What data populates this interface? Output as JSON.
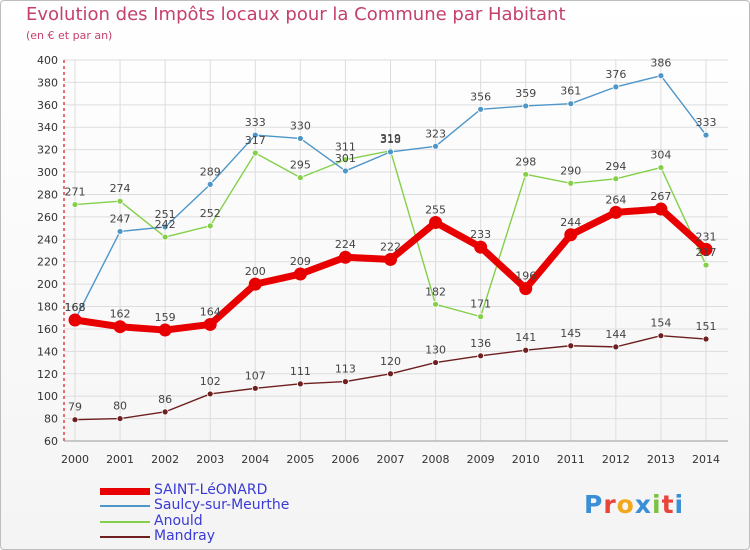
{
  "chart_data": {
    "type": "line",
    "title": "Evolution des Impôts locaux pour la Commune par Habitant",
    "subtitle": "(en € et par an)",
    "xlabel": "",
    "ylabel": "",
    "ylim": [
      60,
      400
    ],
    "yticks": [
      60,
      80,
      100,
      120,
      140,
      160,
      180,
      200,
      220,
      240,
      260,
      280,
      300,
      320,
      340,
      360,
      380,
      400
    ],
    "categories": [
      "2000",
      "2001",
      "2002",
      "2003",
      "2004",
      "2005",
      "2006",
      "2007",
      "2008",
      "2009",
      "2010",
      "2011",
      "2012",
      "2013",
      "2014"
    ],
    "grid": true,
    "legend_position": "bottom-left",
    "series": [
      {
        "name": "SAINT-LéONARD",
        "color": "#e80000",
        "values": [
          168,
          162,
          159,
          164,
          200,
          209,
          224,
          222,
          255,
          233,
          196,
          244,
          264,
          267,
          231
        ]
      },
      {
        "name": "Saulcy-sur-Meurthe",
        "color": "#4e96c8",
        "values": [
          168,
          247,
          251,
          289,
          333,
          330,
          301,
          318,
          323,
          356,
          359,
          361,
          376,
          386,
          333
        ]
      },
      {
        "name": "Anould",
        "color": "#84d04a",
        "values": [
          271,
          274,
          242,
          252,
          317,
          295,
          311,
          319,
          182,
          171,
          298,
          290,
          294,
          304,
          217
        ]
      },
      {
        "name": "Mandray",
        "color": "#6e1f1f",
        "values": [
          79,
          80,
          86,
          102,
          107,
          111,
          113,
          120,
          130,
          136,
          141,
          145,
          144,
          154,
          151
        ]
      }
    ]
  },
  "logo": {
    "text": "Proxiti"
  }
}
